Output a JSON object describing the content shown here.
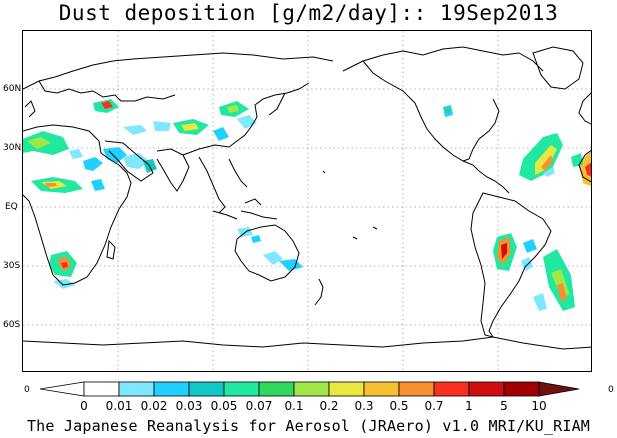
{
  "title": "Dust deposition [g/m2/day]:: 19Sep2013",
  "map": {
    "lat_labels": [
      "60N",
      "30N",
      "EQ",
      "30S",
      "60S"
    ],
    "corner_left": "0",
    "corner_right": "0",
    "bottom_left": "0",
    "bottom_right": "0"
  },
  "legend": {
    "levels": [
      "0",
      "0.01",
      "0.02",
      "0.03",
      "0.05",
      "0.07",
      "0.1",
      "0.2",
      "0.3",
      "0.5",
      "0.7",
      "1",
      "5",
      "10"
    ],
    "colors": [
      "#ffffff",
      "#ffffff",
      "#7fe8ff",
      "#20d0ff",
      "#10c8c8",
      "#20e8a0",
      "#30d860",
      "#a0e848",
      "#e8e840",
      "#f8c030",
      "#f89030",
      "#f83020",
      "#d01010",
      "#a00000",
      "#701010"
    ]
  },
  "credit": "The Japanese Reanalysis for Aerosol (JRAero) v1.0 MRI/KU_RIAM"
}
